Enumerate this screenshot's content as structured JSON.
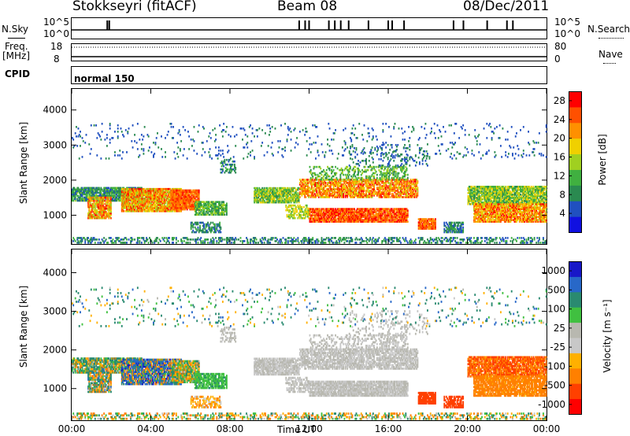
{
  "header": {
    "station": "Stokkseyri (fitACF)",
    "beam": "Beam 08",
    "date": "08/Dec/2011"
  },
  "aux_panel": {
    "nsky_label": "N.Sky",
    "nsky_tick_top": "10^5",
    "nsky_tick_bottom": "10^0",
    "nsearch_label": "N.Search",
    "nsearch_tick_top": "10^5",
    "nsearch_tick_bottom": "10^0",
    "freq_label": "Freq.",
    "freq_unit": "[MHz]",
    "freq_tick_top": "18",
    "freq_tick_bottom": "8",
    "nave_label": "Nave",
    "nave_tick_top": "80",
    "nave_tick_bottom": "0",
    "cpid_label": "CPID",
    "cpid_value": "normal 150"
  },
  "chart_data": [
    {
      "type": "heatmap",
      "title": "",
      "xlabel": "",
      "ylabel": "Slant Range [km]",
      "x_ticks": [
        "00:00",
        "04:00",
        "08:00",
        "12:00",
        "16:00",
        "20:00",
        "00:00"
      ],
      "y_ticks": [
        "1000",
        "2000",
        "3000",
        "4000"
      ],
      "xlim": [
        0,
        24
      ],
      "ylim": [
        180,
        4600
      ],
      "colorbar_label": "Power [dB]",
      "colorbar_ticks": [
        "4",
        "8",
        "12",
        "16",
        "20",
        "24",
        "28"
      ],
      "colorbar_range": [
        0,
        30
      ],
      "colors": [
        "#1010e0",
        "#2050c0",
        "#2a8a50",
        "#40b040",
        "#a0d020",
        "#f0d000",
        "#ff9000",
        "#ff5000",
        "#ff0000"
      ]
    },
    {
      "type": "heatmap",
      "title": "",
      "xlabel": "Time UT",
      "ylabel": "Slant Range [km]",
      "x_ticks": [
        "00:00",
        "04:00",
        "08:00",
        "12:00",
        "16:00",
        "20:00",
        "00:00"
      ],
      "y_ticks": [
        "1000",
        "2000",
        "3000",
        "4000"
      ],
      "xlim": [
        0,
        24
      ],
      "ylim": [
        180,
        4600
      ],
      "colorbar_label": "Velocity [m s⁻¹]",
      "colorbar_ticks": [
        "1000",
        "500",
        "100",
        "25",
        "-25",
        "-100",
        "-500",
        "-1000"
      ],
      "colorbar_range": [
        -1200,
        1200
      ],
      "colors": [
        "#1818c8",
        "#2868c8",
        "#2a8a70",
        "#40c040",
        "#b8b8b0",
        "#c8c8c8",
        "#ffb000",
        "#ff8000",
        "#ff4000",
        "#ff0000"
      ]
    }
  ]
}
